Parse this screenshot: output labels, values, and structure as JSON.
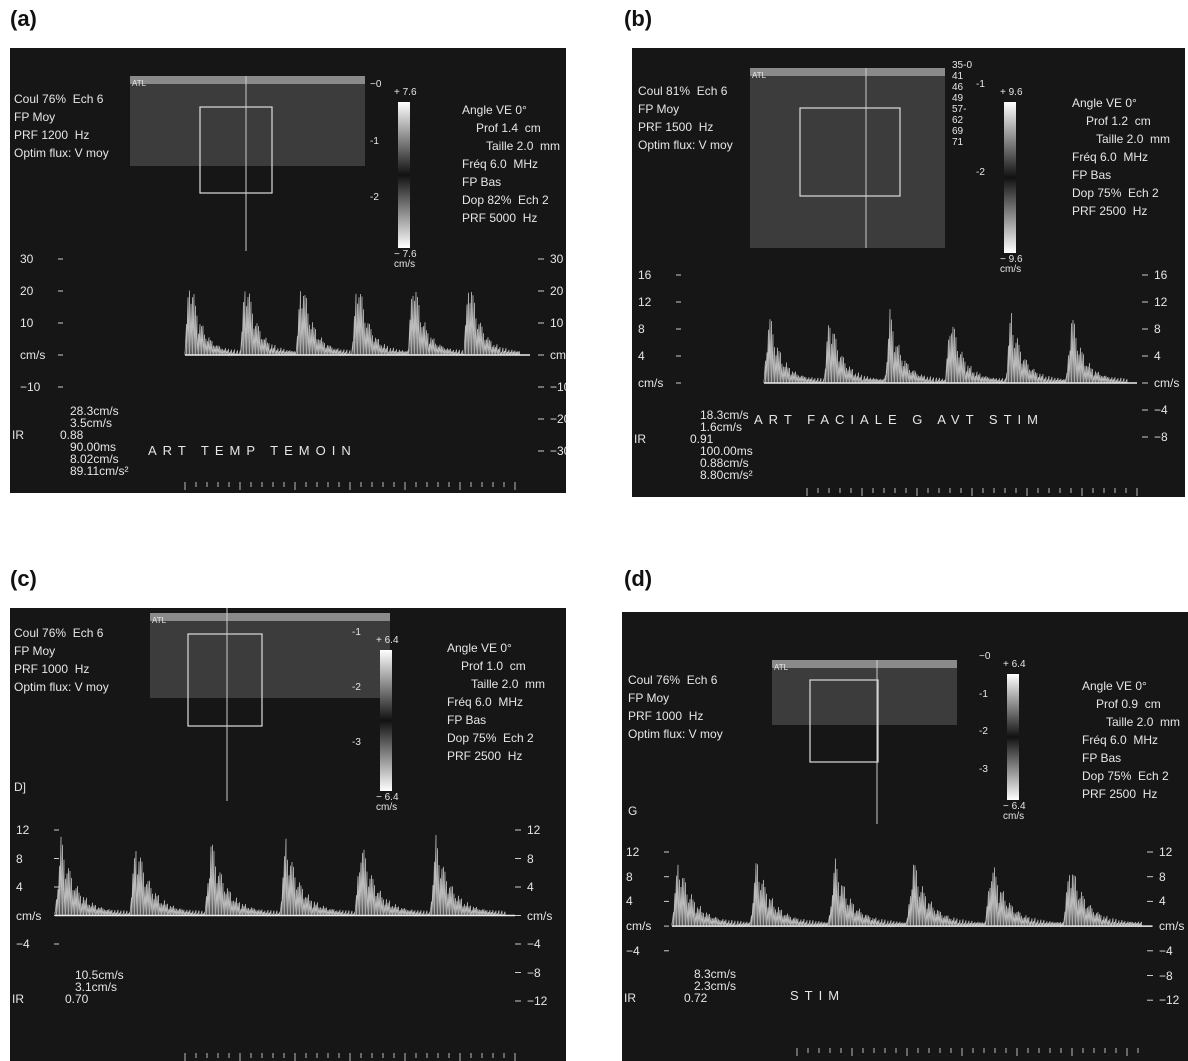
{
  "panels": [
    {
      "label": "(a)",
      "left_settings": [
        "Coul 76%  Ech 6",
        "FP Moy",
        "PRF 1200  Hz",
        "Optim flux: V moy"
      ],
      "right_settings": [
        "Angle VE 0°",
        "Prof 1.4  cm",
        "Taille 2.0  mm",
        "Fréq 6.0  MHz",
        "FP Bas",
        "Dop 82%  Ech 2",
        "PRF 5000  Hz"
      ],
      "logo": "ATL",
      "colorbar": {
        "top": "+ 7.6",
        "bottom": "− 7.6",
        "unit": "cm/s",
        "scale": [
          "−0",
          "-1",
          "-2"
        ]
      },
      "left_ticks": [
        "30",
        "20",
        "10",
        "cm/s",
        "−10"
      ],
      "right_ticks": [
        "30",
        "20",
        "10",
        "cm/s",
        "−10",
        "−20",
        "−30"
      ],
      "ir_label": "IR",
      "measurements": [
        "28.3cm/s",
        "3.5cm/s",
        "0.88",
        "90.00ms",
        "8.02cm/s",
        "89.11cm/s²"
      ],
      "caption": "ART TEMP TEMOIN"
    },
    {
      "label": "(b)",
      "left_settings": [
        "Coul 81%  Ech 6",
        "FP Moy",
        "PRF 1500  Hz",
        "Optim flux: V moy"
      ],
      "right_settings": [
        "Angle VE 0°",
        "Prof 1.2  cm",
        "Taille 2.0  mm",
        "Fréq 6.0  MHz",
        "FP Bas",
        "Dop 75%  Ech 2",
        "PRF 2500  Hz"
      ],
      "logo": "ATL",
      "gray_map": [
        "35-0",
        "41",
        "46",
        "49",
        "57-",
        "62",
        "69",
        "71"
      ],
      "colorbar": {
        "top": "+ 9.6",
        "bottom": "− 9.6",
        "unit": "cm/s",
        "scale": [
          "-1",
          "-2"
        ]
      },
      "left_ticks": [
        "16",
        "12",
        "8",
        "4",
        "cm/s"
      ],
      "right_ticks": [
        "16",
        "12",
        "8",
        "4",
        "cm/s",
        "−4",
        "−8"
      ],
      "ir_label": "IR",
      "measurements": [
        "18.3cm/s",
        "1.6cm/s",
        "0.91",
        "100.00ms",
        "0.88cm/s",
        "8.80cm/s²"
      ],
      "caption": "ART FACIALE G AVT STIM"
    },
    {
      "label": "(c)",
      "left_settings": [
        "Coul 76%  Ech 6",
        "FP Moy",
        "PRF 1000  Hz",
        "Optim flux: V moy"
      ],
      "right_settings": [
        "Angle VE 0°",
        "Prof 1.0  cm",
        "Taille 2.0  mm",
        "Fréq 6.0  MHz",
        "FP Bas",
        "Dop 75%  Ech 2",
        "PRF 2500  Hz"
      ],
      "logo": "ATL",
      "side_mark": "D]",
      "colorbar": {
        "top": "+ 6.4",
        "bottom": "− 6.4",
        "unit": "cm/s",
        "scale": [
          "-1",
          "-2",
          "-3"
        ]
      },
      "left_ticks": [
        "12",
        "8",
        "4",
        "cm/s",
        "−4"
      ],
      "right_ticks": [
        "12",
        "8",
        "4",
        "cm/s",
        "−4",
        "−8",
        "−12"
      ],
      "ir_label": "IR",
      "measurements": [
        "10.5cm/s",
        "3.1cm/s",
        "0.70"
      ]
    },
    {
      "label": "(d)",
      "left_settings": [
        "Coul 76%  Ech 6",
        "FP Moy",
        "PRF 1000  Hz",
        "Optim flux: V moy"
      ],
      "right_settings": [
        "Angle VE 0°",
        "Prof 0.9  cm",
        "Taille 2.0  mm",
        "Fréq 6.0  MHz",
        "FP Bas",
        "Dop 75%  Ech 2",
        "PRF 2500  Hz"
      ],
      "logo": "ATL",
      "side_mark": "G",
      "colorbar": {
        "top": "+ 6.4",
        "bottom": "− 6.4",
        "unit": "cm/s",
        "scale": [
          "−0",
          "-1",
          "-2",
          "-3"
        ]
      },
      "left_ticks": [
        "12",
        "8",
        "4",
        "cm/s",
        "−4"
      ],
      "right_ticks": [
        "12",
        "8",
        "4",
        "cm/s",
        "−4",
        "−8",
        "−12"
      ],
      "ir_label": "IR",
      "measurements": [
        "8.3cm/s",
        "2.3cm/s",
        "0.72"
      ],
      "caption": "STIM"
    }
  ]
}
